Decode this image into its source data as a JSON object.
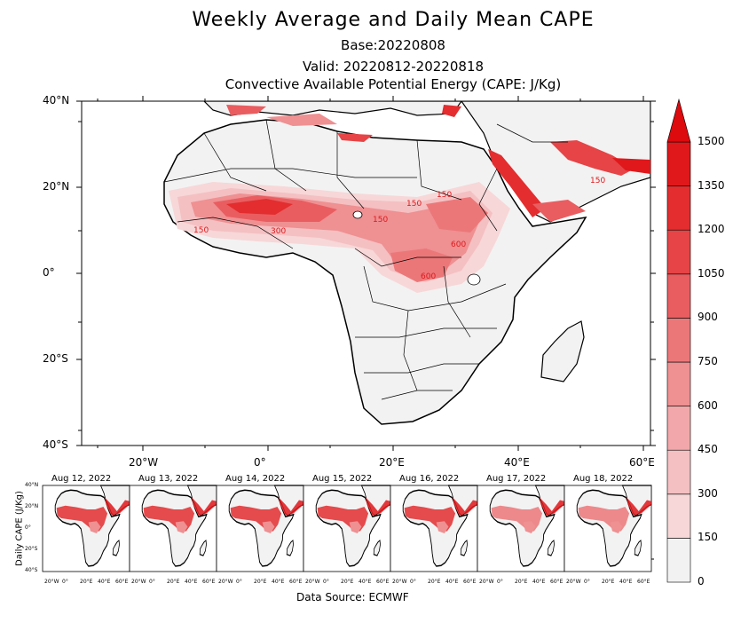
{
  "title": "Weekly Average and Daily Mean CAPE",
  "base_line": "Base:20220808",
  "valid_line": "Valid: 20220812-20220818",
  "variable_line": "Convective Available Potential Energy (CAPE: J/Kg)",
  "source": "Data Source: ECMWF",
  "mini_ylabel": "Daily CAPE (J/Kg)",
  "lat_ticks": [
    "40°N",
    "20°N",
    "0°",
    "20°S",
    "40°S"
  ],
  "lon_ticks": [
    "20°W",
    "0°",
    "20°E",
    "40°E",
    "60°E"
  ],
  "mini_lat_ticks": [
    "40°N",
    "20°N",
    "0°",
    "20°S",
    "40°S"
  ],
  "mini_lon_ticks": [
    "20°W",
    "0°",
    "20°E",
    "40°E",
    "60°E"
  ],
  "colorbar": {
    "labels": [
      "0",
      "150",
      "300",
      "450",
      "600",
      "750",
      "900",
      "1050",
      "1200",
      "1350",
      "1500"
    ],
    "colors": [
      "#f2f2f2",
      "#f7d7d8",
      "#f4c0c2",
      "#f2a8aa",
      "#ef9092",
      "#ec7779",
      "#e95d60",
      "#e64446",
      "#e32d2f",
      "#e0181b",
      "#dd0a0e"
    ]
  },
  "contour_labels": [
    "150",
    "150",
    "150",
    "300",
    "150",
    "600",
    "600",
    "150"
  ],
  "daily_panels": [
    {
      "date": "Aug 12, 2022"
    },
    {
      "date": "Aug 13, 2022"
    },
    {
      "date": "Aug 14, 2022"
    },
    {
      "date": "Aug 15, 2022"
    },
    {
      "date": "Aug 16, 2022"
    },
    {
      "date": "Aug 17, 2022"
    },
    {
      "date": "Aug 18, 2022"
    }
  ]
}
